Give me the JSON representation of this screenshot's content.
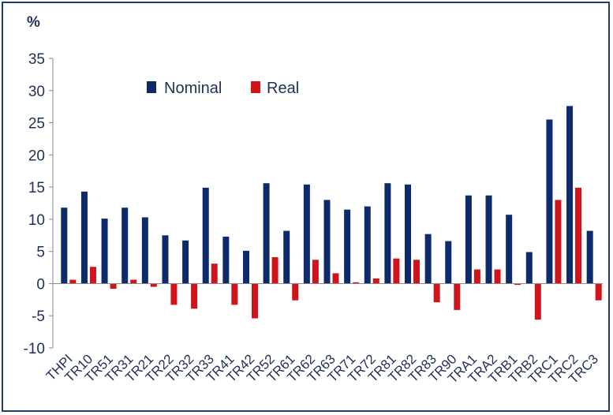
{
  "chart_data": {
    "type": "bar",
    "unit_label": "%",
    "categories": [
      "THPI",
      "TR10",
      "TR51",
      "TR31",
      "TR21",
      "TR22",
      "TR32",
      "TR33",
      "TR41",
      "TR42",
      "TR52",
      "TR61",
      "TR62",
      "TR63",
      "TR71",
      "TR72",
      "TR81",
      "TR82",
      "TR83",
      "TR90",
      "TRA1",
      "TRA2",
      "TRB1",
      "TRB2",
      "TRC1",
      "TRC2",
      "TRC3"
    ],
    "series": [
      {
        "name": "Nominal",
        "color": "#0d2a6b",
        "values": [
          11.8,
          14.3,
          10.1,
          11.8,
          10.3,
          7.5,
          6.7,
          14.9,
          7.3,
          5.1,
          15.6,
          8.2,
          15.4,
          13.0,
          11.5,
          12.0,
          15.6,
          15.4,
          7.7,
          6.6,
          13.7,
          13.7,
          10.7,
          4.9,
          25.5,
          27.6,
          8.2
        ]
      },
      {
        "name": "Real",
        "color": "#d0141b",
        "values": [
          0.6,
          2.6,
          -0.8,
          0.6,
          -0.5,
          -3.3,
          -3.9,
          3.1,
          -3.3,
          -5.4,
          4.1,
          -2.6,
          3.7,
          1.6,
          0.2,
          0.8,
          3.9,
          3.7,
          -2.9,
          -4.1,
          2.2,
          2.2,
          -0.2,
          -5.6,
          13.0,
          14.9,
          -2.6
        ]
      }
    ],
    "ylim": [
      -10,
      35
    ],
    "yticks": [
      -10,
      -5,
      0,
      5,
      10,
      15,
      20,
      25,
      30,
      35
    ],
    "legend": "top-center",
    "grid": false
  }
}
